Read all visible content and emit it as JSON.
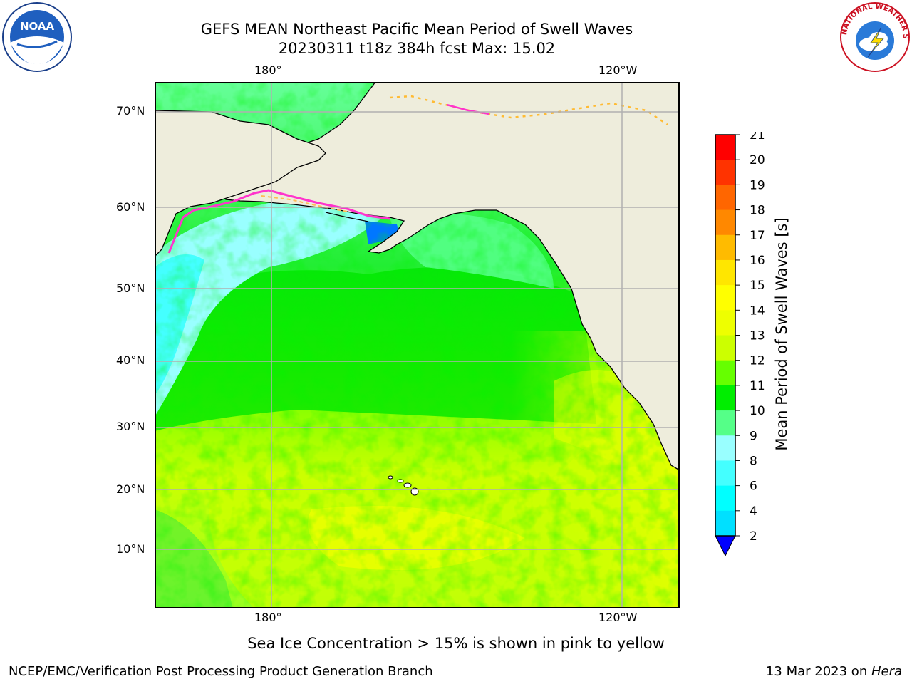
{
  "header": {
    "title_line1": "GEFS MEAN Northeast Pacific Mean Period of Swell Waves",
    "title_line2": "20230311 t18z 384h fcst   Max: 15.02"
  },
  "logos": {
    "left": {
      "icon": "noaa-logo-icon",
      "text": "NOAA"
    },
    "right": {
      "icon": "nws-logo-icon",
      "text": "NATIONAL WEATHER SERVICE"
    }
  },
  "map": {
    "lon_labels_top": [
      "180°",
      "120°W"
    ],
    "lon_labels_bottom": [
      "180°",
      "120°W"
    ],
    "lat_labels": [
      "70°N",
      "60°N",
      "50°N",
      "40°N",
      "30°N",
      "20°N",
      "10°N"
    ],
    "colors": {
      "land": "#eeeddc",
      "coast": "#000000",
      "grid": "#b0b0b0",
      "ice_edge": "#ff33cc"
    }
  },
  "colorbar": {
    "label": "Mean Period of Swell Waves [s]",
    "ticks": [
      "21",
      "20",
      "19",
      "18",
      "17",
      "16",
      "15",
      "14",
      "13",
      "12",
      "11",
      "10",
      "9",
      "8",
      "6",
      "4",
      "2"
    ],
    "colors": [
      "#ff0000",
      "#ff3300",
      "#ff6600",
      "#ff8800",
      "#ffbb00",
      "#ffe600",
      "#ffff00",
      "#eeff00",
      "#ccff00",
      "#66ff00",
      "#00ee00",
      "#55ff88",
      "#99ffff",
      "#44ffff",
      "#00ffff",
      "#00e0ff",
      "#0077ff",
      "#0000ff"
    ]
  },
  "footer": {
    "note": "Sea Ice Concentration > 15% is shown in pink to yellow",
    "org": "NCEP/EMC/Verification Post Processing Product Generation Branch",
    "date": "13 Mar 2023 on ",
    "host": "Hera"
  }
}
